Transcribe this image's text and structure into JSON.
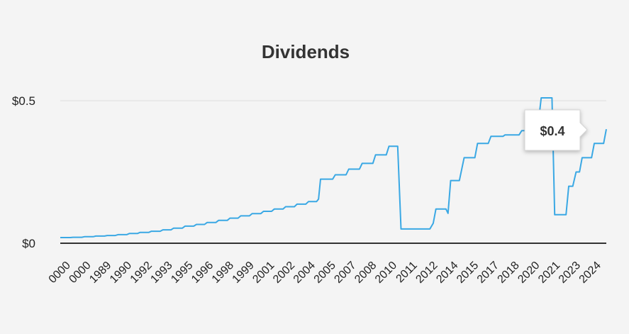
{
  "chart_data": {
    "type": "line",
    "title": "Dividends",
    "xlabel": "",
    "ylabel": "",
    "y_ticks": [
      "$0",
      "$0.5"
    ],
    "y_tick_values": [
      0,
      0.5
    ],
    "ylim": [
      0,
      0.5
    ],
    "x_tick_labels": [
      "0000",
      "0000",
      "1989",
      "1990",
      "1992",
      "1993",
      "1995",
      "1996",
      "1998",
      "1999",
      "2001",
      "2002",
      "2004",
      "2005",
      "2007",
      "2008",
      "2010",
      "2011",
      "2012",
      "2014",
      "2015",
      "2017",
      "2018",
      "2020",
      "2021",
      "2023",
      "2024"
    ],
    "series": [
      {
        "color": "#3aa8e4",
        "points": [
          [
            0,
            0.02
          ],
          [
            1.5,
            0.02
          ],
          [
            1.9,
            0.021
          ],
          [
            3.2,
            0.021
          ],
          [
            3.6,
            0.023
          ],
          [
            4.9,
            0.023
          ],
          [
            5.3,
            0.025
          ],
          [
            6.6,
            0.025
          ],
          [
            7,
            0.027
          ],
          [
            8.2,
            0.027
          ],
          [
            8.6,
            0.03
          ],
          [
            9.9,
            0.03
          ],
          [
            10.3,
            0.034
          ],
          [
            11.5,
            0.034
          ],
          [
            11.9,
            0.038
          ],
          [
            13.2,
            0.038
          ],
          [
            13.6,
            0.042
          ],
          [
            14.9,
            0.042
          ],
          [
            15.3,
            0.047
          ],
          [
            16.5,
            0.047
          ],
          [
            16.9,
            0.053
          ],
          [
            18.2,
            0.053
          ],
          [
            18.6,
            0.06
          ],
          [
            19.9,
            0.06
          ],
          [
            20.3,
            0.066
          ],
          [
            21.5,
            0.066
          ],
          [
            21.9,
            0.073
          ],
          [
            23.2,
            0.073
          ],
          [
            23.6,
            0.08
          ],
          [
            24.9,
            0.08
          ],
          [
            25.3,
            0.088
          ],
          [
            26.5,
            0.088
          ],
          [
            26.9,
            0.096
          ],
          [
            28.2,
            0.096
          ],
          [
            28.6,
            0.104
          ],
          [
            29.9,
            0.104
          ],
          [
            30.3,
            0.112
          ],
          [
            31.5,
            0.112
          ],
          [
            31.9,
            0.12
          ],
          [
            33.2,
            0.12
          ],
          [
            33.6,
            0.128
          ],
          [
            34.9,
            0.128
          ],
          [
            35.3,
            0.137
          ],
          [
            36.6,
            0.137
          ],
          [
            37,
            0.146
          ],
          [
            38.2,
            0.146
          ],
          [
            38.5,
            0.155
          ],
          [
            38.8,
            0.225
          ],
          [
            40.6,
            0.225
          ],
          [
            41,
            0.24
          ],
          [
            42.6,
            0.24
          ],
          [
            43,
            0.26
          ],
          [
            44.6,
            0.26
          ],
          [
            45,
            0.28
          ],
          [
            46.6,
            0.28
          ],
          [
            47,
            0.31
          ],
          [
            48.6,
            0.31
          ],
          [
            49,
            0.34
          ],
          [
            50.3,
            0.34
          ],
          [
            50.8,
            0.05
          ],
          [
            55.1,
            0.05
          ],
          [
            55.6,
            0.07
          ],
          [
            56,
            0.12
          ],
          [
            57.5,
            0.12
          ],
          [
            57.8,
            0.105
          ],
          [
            58.2,
            0.22
          ],
          [
            59.5,
            0.22
          ],
          [
            60.2,
            0.3
          ],
          [
            61.8,
            0.3
          ],
          [
            62.2,
            0.35
          ],
          [
            63.8,
            0.35
          ],
          [
            64.2,
            0.375
          ],
          [
            66,
            0.375
          ],
          [
            66.3,
            0.38
          ],
          [
            68.4,
            0.38
          ],
          [
            68.8,
            0.395
          ],
          [
            70.4,
            0.395
          ],
          [
            70.8,
            0.43
          ],
          [
            71.3,
            0.43
          ],
          [
            71.7,
            0.51
          ],
          [
            73.3,
            0.51
          ],
          [
            73.7,
            0.1
          ],
          [
            75.4,
            0.1
          ],
          [
            75.8,
            0.2
          ],
          [
            76.4,
            0.2
          ],
          [
            76.9,
            0.25
          ],
          [
            77.4,
            0.25
          ],
          [
            77.8,
            0.3
          ],
          [
            79.2,
            0.3
          ],
          [
            79.6,
            0.35
          ],
          [
            81,
            0.35
          ],
          [
            81.4,
            0.4
          ]
        ]
      }
    ],
    "tooltip": {
      "label": "$0.4",
      "value": 0.4
    }
  }
}
